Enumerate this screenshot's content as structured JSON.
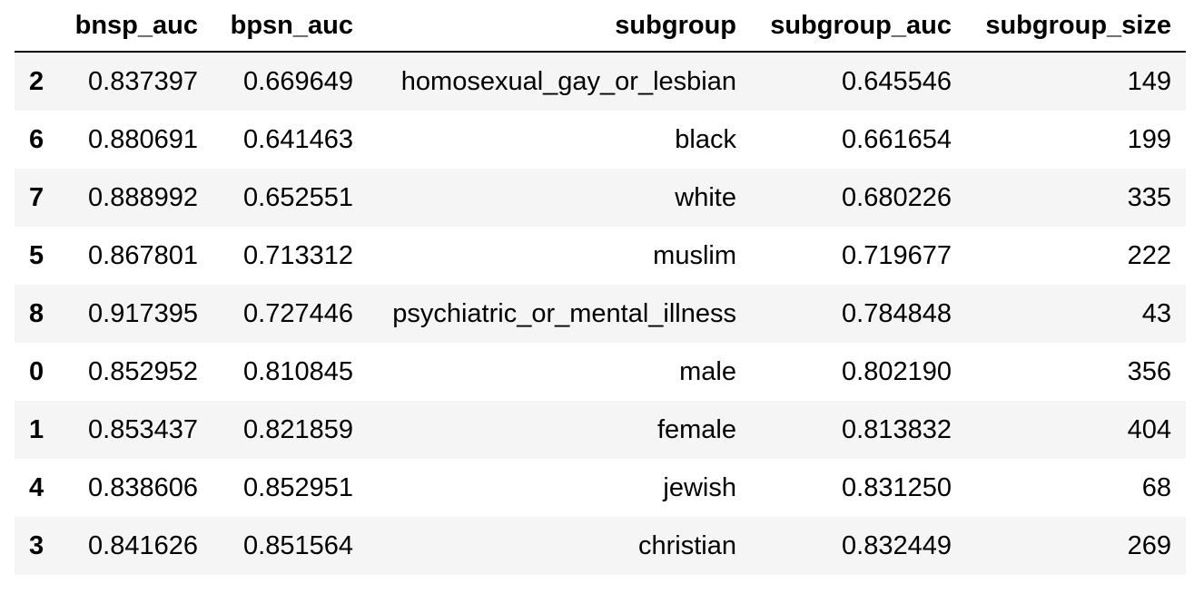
{
  "table": {
    "columns": [
      "",
      "bnsp_auc",
      "bpsn_auc",
      "subgroup",
      "subgroup_auc",
      "subgroup_size"
    ],
    "rows": [
      {
        "index": "2",
        "bnsp_auc": "0.837397",
        "bpsn_auc": "0.669649",
        "subgroup": "homosexual_gay_or_lesbian",
        "subgroup_auc": "0.645546",
        "subgroup_size": "149"
      },
      {
        "index": "6",
        "bnsp_auc": "0.880691",
        "bpsn_auc": "0.641463",
        "subgroup": "black",
        "subgroup_auc": "0.661654",
        "subgroup_size": "199"
      },
      {
        "index": "7",
        "bnsp_auc": "0.888992",
        "bpsn_auc": "0.652551",
        "subgroup": "white",
        "subgroup_auc": "0.680226",
        "subgroup_size": "335"
      },
      {
        "index": "5",
        "bnsp_auc": "0.867801",
        "bpsn_auc": "0.713312",
        "subgroup": "muslim",
        "subgroup_auc": "0.719677",
        "subgroup_size": "222"
      },
      {
        "index": "8",
        "bnsp_auc": "0.917395",
        "bpsn_auc": "0.727446",
        "subgroup": "psychiatric_or_mental_illness",
        "subgroup_auc": "0.784848",
        "subgroup_size": "43"
      },
      {
        "index": "0",
        "bnsp_auc": "0.852952",
        "bpsn_auc": "0.810845",
        "subgroup": "male",
        "subgroup_auc": "0.802190",
        "subgroup_size": "356"
      },
      {
        "index": "1",
        "bnsp_auc": "0.853437",
        "bpsn_auc": "0.821859",
        "subgroup": "female",
        "subgroup_auc": "0.813832",
        "subgroup_size": "404"
      },
      {
        "index": "4",
        "bnsp_auc": "0.838606",
        "bpsn_auc": "0.852951",
        "subgroup": "jewish",
        "subgroup_auc": "0.831250",
        "subgroup_size": "68"
      },
      {
        "index": "3",
        "bnsp_auc": "0.841626",
        "bpsn_auc": "0.851564",
        "subgroup": "christian",
        "subgroup_auc": "0.832449",
        "subgroup_size": "269"
      }
    ]
  }
}
